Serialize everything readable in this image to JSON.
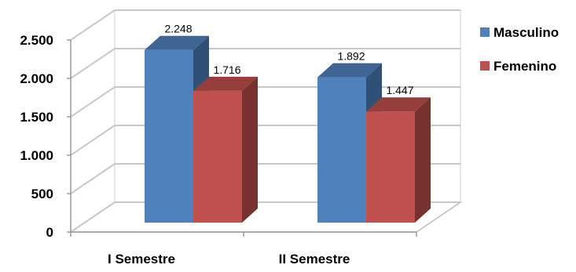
{
  "chart_data": {
    "type": "bar",
    "categories": [
      "I Semestre",
      "II Semestre"
    ],
    "series": [
      {
        "name": "Masculino",
        "values": [
          2248,
          1892
        ],
        "labels": [
          "2.248",
          "1.892"
        ],
        "color": "#4F81BD"
      },
      {
        "name": "Femenino",
        "values": [
          1716,
          1447
        ],
        "labels": [
          "1.716",
          "1.447"
        ],
        "color": "#C0504D"
      }
    ],
    "ylim": [
      0,
      2500
    ],
    "yticks": [
      0,
      500,
      1000,
      1500,
      2000,
      2500
    ],
    "ytick_labels": [
      "0",
      "500",
      "1.000",
      "1.500",
      "2.000",
      "2.500"
    ],
    "grid": true,
    "three_d": true,
    "legend_position": "right"
  }
}
